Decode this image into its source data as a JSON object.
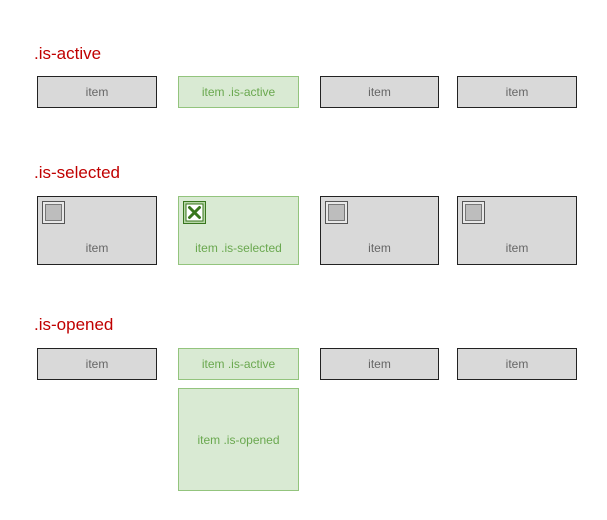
{
  "sections": {
    "active": {
      "title": ".is-active",
      "items": [
        "item",
        "item .is-active",
        "item",
        "item"
      ]
    },
    "selected": {
      "title": ".is-selected",
      "items": [
        "item",
        "item .is-selected",
        "item",
        "item"
      ]
    },
    "opened": {
      "title": ".is-opened",
      "items": [
        "item",
        "item .is-active",
        "item",
        "item"
      ],
      "panel": "item .is-opened"
    }
  },
  "colors": {
    "title": "#c00000",
    "item_fill": "#d9d9d9",
    "item_border": "#222222",
    "active_fill": "#d9ead3",
    "active_border": "#93c47d",
    "active_text": "#6aa84f"
  },
  "icons": {
    "checkbox": "checkbox-icon",
    "checkbox_checked": "checkbox-checked-icon"
  }
}
